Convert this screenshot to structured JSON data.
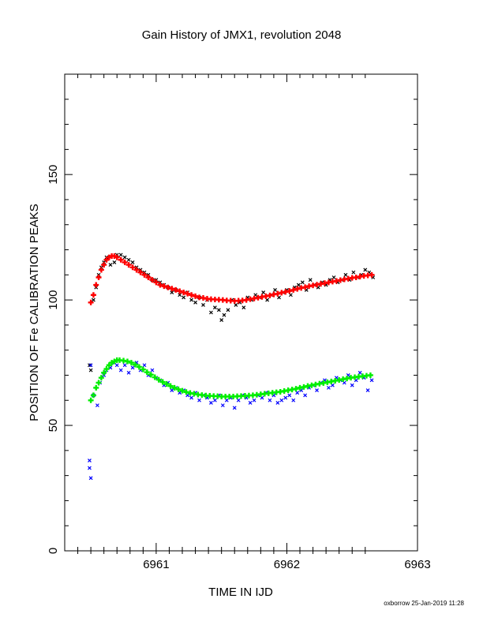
{
  "chart_data": {
    "type": "scatter",
    "title": "Gain History of JMX1, revolution 2048",
    "xlabel": "TIME IN IJD",
    "ylabel": "POSITION OF Fe CALIBRATION PEAKS",
    "xlim": [
      6960.3,
      6963
    ],
    "ylim": [
      0,
      190
    ],
    "xticks": [
      6961,
      6962,
      6963
    ],
    "yticks": [
      0,
      50,
      100,
      150
    ],
    "grid": false,
    "series": [
      {
        "name": "",
        "marker": "x",
        "color": "#000000",
        "x": [
          6960.49,
          6960.5,
          6960.52,
          6960.54,
          6960.56,
          6960.58,
          6960.6,
          6960.62,
          6960.65,
          6960.68,
          6960.7,
          6960.73,
          6960.76,
          6960.79,
          6960.82,
          6960.85,
          6960.88,
          6960.91,
          6960.94,
          6960.97,
          6961.0,
          6961.03,
          6961.06,
          6961.09,
          6961.12,
          6961.15,
          6961.18,
          6961.21,
          6961.24,
          6961.27,
          6961.3,
          6961.33,
          6961.36,
          6961.39,
          6961.42,
          6961.45,
          6961.48,
          6961.5,
          6961.52,
          6961.55,
          6961.58,
          6961.61,
          6961.64,
          6961.67,
          6961.7,
          6961.73,
          6961.76,
          6961.79,
          6961.82,
          6961.85,
          6961.88,
          6961.91,
          6961.94,
          6961.97,
          6962.0,
          6962.03,
          6962.06,
          6962.09,
          6962.12,
          6962.15,
          6962.18,
          6962.21,
          6962.24,
          6962.27,
          6962.3,
          6962.33,
          6962.36,
          6962.39,
          6962.42,
          6962.45,
          6962.48,
          6962.51,
          6962.54,
          6962.57,
          6962.6,
          6962.63,
          6962.66
        ],
        "y": [
          74,
          72,
          100,
          105,
          110,
          113,
          115,
          117,
          114,
          115,
          118,
          118,
          117,
          116,
          115,
          113,
          112,
          111,
          110,
          108,
          108,
          107,
          106,
          105,
          103,
          104,
          102,
          101,
          103,
          100,
          99,
          101,
          98,
          100,
          95,
          97,
          96,
          92,
          94,
          96,
          100,
          98,
          99,
          97,
          101,
          100,
          102,
          101,
          103,
          100,
          102,
          104,
          101,
          103,
          104,
          102,
          105,
          106,
          107,
          104,
          108,
          106,
          105,
          107,
          106,
          108,
          109,
          107,
          108,
          110,
          108,
          111,
          109,
          110,
          112,
          111,
          109
        ]
      },
      {
        "name": "",
        "marker": "+",
        "color": "#ff0000",
        "x": [
          6960.5,
          6960.52,
          6960.54,
          6960.56,
          6960.58,
          6960.6,
          6960.62,
          6960.64,
          6960.66,
          6960.68,
          6960.7,
          6960.73,
          6960.76,
          6960.79,
          6960.82,
          6960.85,
          6960.88,
          6960.91,
          6960.94,
          6960.97,
          6961.0,
          6961.03,
          6961.06,
          6961.09,
          6961.12,
          6961.15,
          6961.18,
          6961.21,
          6961.24,
          6961.27,
          6961.3,
          6961.33,
          6961.36,
          6961.39,
          6961.42,
          6961.45,
          6961.48,
          6961.51,
          6961.54,
          6961.57,
          6961.6,
          6961.63,
          6961.66,
          6961.69,
          6961.72,
          6961.75,
          6961.78,
          6961.81,
          6961.84,
          6961.87,
          6961.9,
          6961.93,
          6961.96,
          6961.99,
          6962.02,
          6962.05,
          6962.08,
          6962.11,
          6962.14,
          6962.17,
          6962.2,
          6962.23,
          6962.26,
          6962.29,
          6962.32,
          6962.35,
          6962.38,
          6962.41,
          6962.44,
          6962.47,
          6962.5,
          6962.53,
          6962.56,
          6962.59,
          6962.62,
          6962.65
        ],
        "y": [
          99,
          102,
          106,
          109,
          112,
          114,
          116,
          117,
          117.5,
          117.5,
          117,
          116,
          115,
          114,
          113,
          112,
          111,
          110,
          109,
          108,
          107,
          106,
          105.5,
          105,
          104.5,
          104,
          103.5,
          103,
          102.5,
          102,
          101.5,
          101,
          100.8,
          100.5,
          100.3,
          100.2,
          100.1,
          100,
          99.8,
          99.7,
          99.6,
          99.7,
          99.8,
          100,
          100.3,
          100.6,
          100.9,
          101.2,
          101.5,
          101.8,
          102.2,
          102.5,
          102.9,
          103.2,
          103.6,
          104,
          104.4,
          104.8,
          105.1,
          105.5,
          105.8,
          106.1,
          106.4,
          106.7,
          107,
          107.3,
          107.6,
          107.9,
          108.2,
          108.5,
          108.8,
          109,
          109.3,
          109.6,
          109.8,
          110
        ]
      },
      {
        "name": "",
        "marker": "x",
        "color": "#0000ff",
        "x": [
          6960.49,
          6960.49,
          6960.5,
          6960.5,
          6960.52,
          6960.55,
          6960.57,
          6960.6,
          6960.62,
          6960.65,
          6960.68,
          6960.7,
          6960.73,
          6960.76,
          6960.79,
          6960.82,
          6960.85,
          6960.88,
          6960.91,
          6960.94,
          6960.97,
          6961.0,
          6961.03,
          6961.06,
          6961.09,
          6961.12,
          6961.15,
          6961.18,
          6961.21,
          6961.24,
          6961.27,
          6961.3,
          6961.33,
          6961.36,
          6961.39,
          6961.42,
          6961.45,
          6961.48,
          6961.51,
          6961.54,
          6961.57,
          6961.6,
          6961.63,
          6961.66,
          6961.69,
          6961.72,
          6961.75,
          6961.78,
          6961.81,
          6961.84,
          6961.87,
          6961.9,
          6961.93,
          6961.96,
          6961.99,
          6962.02,
          6962.05,
          6962.08,
          6962.11,
          6962.14,
          6962.17,
          6962.2,
          6962.23,
          6962.26,
          6962.29,
          6962.32,
          6962.35,
          6962.38,
          6962.41,
          6962.44,
          6962.47,
          6962.5,
          6962.53,
          6962.56,
          6962.59,
          6962.62,
          6962.65
        ],
        "y": [
          36,
          33,
          29,
          74,
          62,
          58,
          67,
          70,
          72,
          73,
          75,
          74,
          72,
          74,
          71,
          73,
          75,
          72,
          74,
          70,
          72,
          69,
          68,
          66,
          67,
          64,
          65,
          63,
          64,
          62,
          61,
          63,
          60,
          62,
          61,
          59,
          60,
          62,
          58,
          60,
          61,
          57,
          60,
          62,
          61,
          59,
          60,
          62,
          61,
          63,
          60,
          62,
          59,
          60,
          61,
          62,
          60,
          63,
          64,
          62,
          65,
          66,
          64,
          67,
          68,
          65,
          66,
          69,
          68,
          67,
          70,
          66,
          68,
          71,
          69,
          64,
          68
        ]
      },
      {
        "name": "",
        "marker": "+",
        "color": "#00ee00",
        "x": [
          6960.5,
          6960.52,
          6960.54,
          6960.56,
          6960.58,
          6960.6,
          6960.62,
          6960.64,
          6960.66,
          6960.68,
          6960.7,
          6960.72,
          6960.75,
          6960.78,
          6960.81,
          6960.84,
          6960.87,
          6960.9,
          6960.93,
          6960.96,
          6960.99,
          6961.02,
          6961.05,
          6961.08,
          6961.11,
          6961.14,
          6961.17,
          6961.2,
          6961.23,
          6961.26,
          6961.29,
          6961.32,
          6961.35,
          6961.38,
          6961.41,
          6961.44,
          6961.47,
          6961.5,
          6961.53,
          6961.56,
          6961.59,
          6961.62,
          6961.65,
          6961.68,
          6961.71,
          6961.74,
          6961.77,
          6961.8,
          6961.83,
          6961.86,
          6961.89,
          6961.92,
          6961.95,
          6961.98,
          6962.01,
          6962.04,
          6962.07,
          6962.1,
          6962.13,
          6962.16,
          6962.19,
          6962.22,
          6962.25,
          6962.28,
          6962.31,
          6962.34,
          6962.37,
          6962.4,
          6962.43,
          6962.46,
          6962.49,
          6962.52,
          6962.55,
          6962.58,
          6962.61,
          6962.64
        ],
        "y": [
          60,
          62,
          65,
          67,
          69,
          71,
          72.5,
          74,
          75,
          75.5,
          76,
          76,
          75.8,
          75.5,
          75,
          74.2,
          73.3,
          72.3,
          71.2,
          70.2,
          69.2,
          68.2,
          67.3,
          66.5,
          65.7,
          65,
          64.4,
          63.8,
          63.3,
          62.9,
          62.6,
          62.3,
          62.1,
          61.9,
          61.8,
          61.7,
          61.6,
          61.5,
          61.5,
          61.5,
          61.5,
          61.6,
          61.7,
          61.8,
          61.9,
          62,
          62.2,
          62.4,
          62.6,
          62.8,
          63,
          63.2,
          63.4,
          63.7,
          64,
          64.3,
          64.6,
          65,
          65.3,
          65.7,
          66,
          66.3,
          66.6,
          66.9,
          67.2,
          67.5,
          67.8,
          68.1,
          68.4,
          68.7,
          69,
          69.2,
          69.4,
          69.6,
          69.8,
          70
        ]
      }
    ],
    "annotations": [
      "oxborrow 25-Jan-2019 11:28"
    ]
  }
}
